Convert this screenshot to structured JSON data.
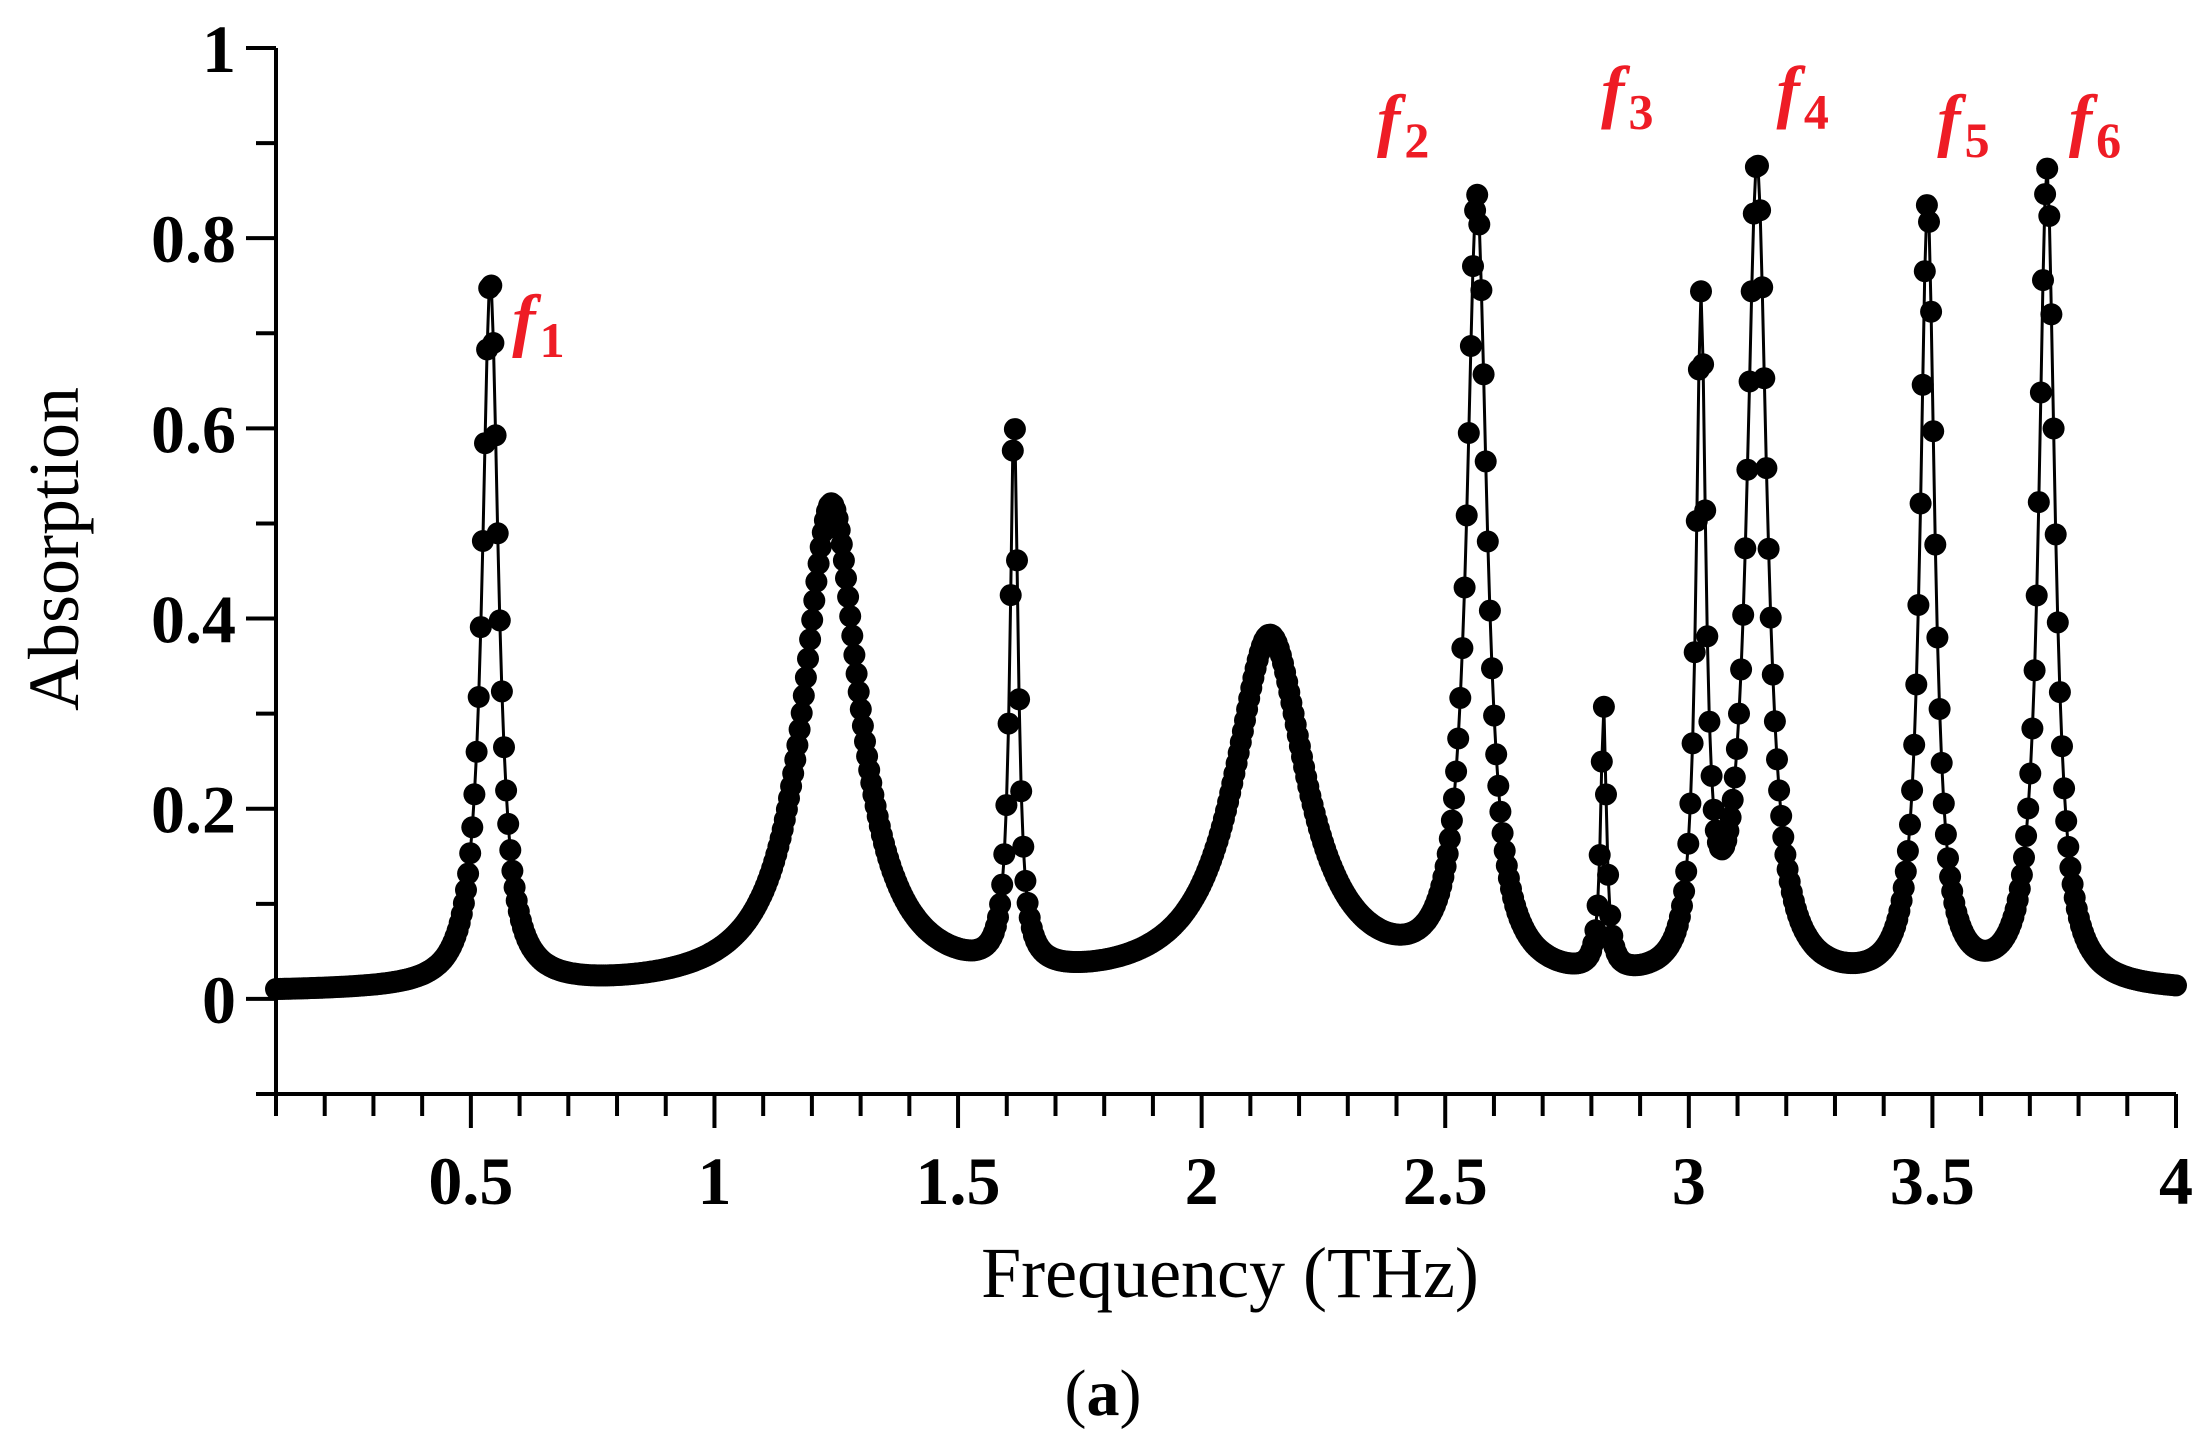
{
  "chart_data": {
    "type": "scatter",
    "xlabel": "Frequency (THz)",
    "ylabel": "Absorption",
    "panel_label_open": "(",
    "panel_label_letter": "a",
    "panel_label_close": ")",
    "xlim": [
      0.1,
      4.0
    ],
    "ylim": [
      -0.1,
      1.0
    ],
    "x_ticks": [
      0.5,
      1,
      1.5,
      2,
      2.5,
      3,
      3.5,
      4
    ],
    "x_tick_labels": [
      "0.5",
      "1",
      "1.5",
      "2",
      "2.5",
      "3",
      "3.5",
      "4"
    ],
    "x_minor_step": 0.1,
    "y_ticks": [
      0,
      0.2,
      0.4,
      0.6,
      0.8,
      1
    ],
    "y_tick_labels": [
      "0",
      "0.2",
      "0.4",
      "0.6",
      "0.8",
      "1"
    ],
    "y_minor_step": 0.1,
    "grid": false,
    "marker_color": "#000000",
    "label_color": "#ee1c25",
    "series": [
      {
        "marker": "filled-circle",
        "x_range": [
          0.1,
          4.0
        ],
        "baseline": 0.006,
        "peaks": [
          {
            "f": 0.54,
            "amp": 0.745,
            "w": 0.02
          },
          {
            "f": 1.24,
            "amp": 0.51,
            "w": 0.07
          },
          {
            "f": 1.615,
            "amp": 0.58,
            "w": 0.01
          },
          {
            "f": 2.14,
            "amp": 0.37,
            "w": 0.09
          },
          {
            "f": 2.565,
            "amp": 0.82,
            "w": 0.025
          },
          {
            "f": 2.825,
            "amp": 0.28,
            "w": 0.007
          },
          {
            "f": 3.025,
            "amp": 0.69,
            "w": 0.012
          },
          {
            "f": 3.14,
            "amp": 0.86,
            "w": 0.025
          },
          {
            "f": 3.49,
            "amp": 0.82,
            "w": 0.018
          },
          {
            "f": 3.735,
            "amp": 0.86,
            "w": 0.02
          }
        ],
        "values_note": "y(x) = baseline + sum amp / (1 + ((x - f) / w)^2), clipped at 1.0"
      }
    ],
    "peak_labels": [
      {
        "letter": "f",
        "sub": "1",
        "x": 0.585,
        "y": 0.69
      },
      {
        "letter": "f",
        "sub": "2",
        "x": 2.36,
        "y": 0.9
      },
      {
        "letter": "f",
        "sub": "3",
        "x": 2.82,
        "y": 0.93
      },
      {
        "letter": "f",
        "sub": "4",
        "x": 3.18,
        "y": 0.93
      },
      {
        "letter": "f",
        "sub": "5",
        "x": 3.51,
        "y": 0.9
      },
      {
        "letter": "f",
        "sub": "6",
        "x": 3.78,
        "y": 0.9
      }
    ]
  }
}
